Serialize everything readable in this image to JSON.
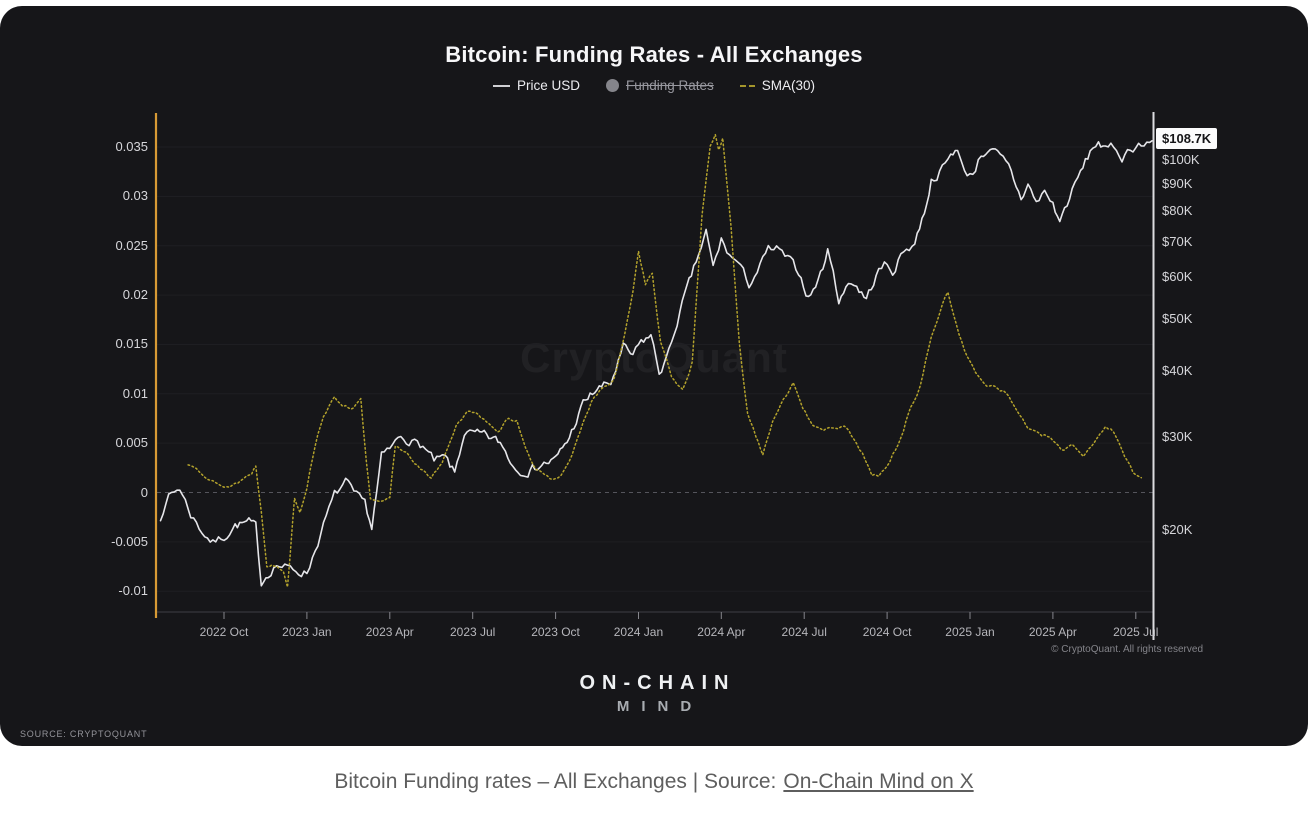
{
  "panel": {
    "title": "Bitcoin: Funding Rates - All Exchanges",
    "watermark": "CryptoQuant",
    "price_tag": "$108.7K",
    "copyright": "© CryptoQuant. All rights reserved",
    "brand_line1": "ON-CHAIN",
    "brand_line2": "MIND",
    "source_label": "SOURCE: CRYPTOQUANT"
  },
  "caption": {
    "prefix": "Bitcoin Funding rates – All Exchanges | Source:",
    "link_text": "On-Chain Mind on X"
  },
  "colors": {
    "panel_bg": "#161619",
    "price_line": "#e6e6ea",
    "sma_line": "#b3a22c",
    "left_axis_line": "#d79a35",
    "right_axis_line": "#dcdce0",
    "zero_line": "#55555c",
    "gridline": "#1f1f23",
    "bottom_border": "#3f3f45",
    "tick_mark": "#86868c",
    "tag_bg": "#fbfbfc"
  },
  "chart_data": {
    "type": "line",
    "title": "Bitcoin: Funding Rates - All Exchanges",
    "background": "#161619",
    "grid": "faint horizontal at left-axis ticks",
    "legend_position": "top-center",
    "legend": [
      {
        "label": "Price USD",
        "marker": "line",
        "color": "#cfcfd3",
        "struck": false
      },
      {
        "label": "Funding Rates",
        "marker": "circle",
        "color": "#85858b",
        "struck": true
      },
      {
        "label": "SMA(30)",
        "marker": "dashes",
        "color": "#a4962c",
        "struck": false
      }
    ],
    "x_axis": {
      "unit": "months since 2022-07-01",
      "range_t": [
        0.7,
        36.6
      ],
      "ticks": [
        {
          "t": 3,
          "label": "2022 Oct"
        },
        {
          "t": 6,
          "label": "2023 Jan"
        },
        {
          "t": 9,
          "label": "2023 Apr"
        },
        {
          "t": 12,
          "label": "2023 Jul"
        },
        {
          "t": 15,
          "label": "2023 Oct"
        },
        {
          "t": 18,
          "label": "2024 Jan"
        },
        {
          "t": 21,
          "label": "2024 Apr"
        },
        {
          "t": 24,
          "label": "2024 Jul"
        },
        {
          "t": 27,
          "label": "2024 Oct"
        },
        {
          "t": 30,
          "label": "2025 Jan"
        },
        {
          "t": 33,
          "label": "2025 Apr"
        },
        {
          "t": 36,
          "label": "2025 Jul"
        }
      ]
    },
    "left_axis": {
      "scale": "linear",
      "zero_line_dashed": true,
      "ticks": [
        {
          "v": 0.035,
          "label": "0.035"
        },
        {
          "v": 0.03,
          "label": "0.03"
        },
        {
          "v": 0.025,
          "label": "0.025"
        },
        {
          "v": 0.02,
          "label": "0.02"
        },
        {
          "v": 0.015,
          "label": "0.015"
        },
        {
          "v": 0.01,
          "label": "0.01"
        },
        {
          "v": 0.005,
          "label": "0.005"
        },
        {
          "v": 0,
          "label": "0"
        },
        {
          "v": -0.005,
          "label": "-0.005"
        },
        {
          "v": -0.01,
          "label": "-0.01"
        }
      ]
    },
    "right_axis": {
      "scale": "log",
      "unit": "USD (thousands)",
      "last_value_label": "$108.7K",
      "last_value": 108.7,
      "ticks": [
        {
          "v": 100,
          "label": "$100K"
        },
        {
          "v": 90,
          "label": "$90K"
        },
        {
          "v": 80,
          "label": "$80K"
        },
        {
          "v": 70,
          "label": "$70K"
        },
        {
          "v": 60,
          "label": "$60K"
        },
        {
          "v": 50,
          "label": "$50K"
        },
        {
          "v": 40,
          "label": "$40K"
        },
        {
          "v": 30,
          "label": "$30K"
        },
        {
          "v": 20,
          "label": "$20K"
        }
      ]
    },
    "series": [
      {
        "name": "Price USD",
        "axis": "right",
        "style": "solid",
        "color": "#e6e6ea",
        "visible": true,
        "points": [
          [
            0.7,
            20.8
          ],
          [
            1.0,
            23.2
          ],
          [
            1.4,
            24.0
          ],
          [
            1.8,
            21.4
          ],
          [
            2.2,
            19.9
          ],
          [
            2.6,
            18.9
          ],
          [
            3.0,
            19.4
          ],
          [
            3.4,
            20.4
          ],
          [
            3.9,
            20.6
          ],
          [
            4.15,
            20.2
          ],
          [
            4.35,
            15.9
          ],
          [
            4.6,
            16.6
          ],
          [
            4.9,
            17.2
          ],
          [
            5.3,
            16.9
          ],
          [
            5.7,
            16.7
          ],
          [
            6.0,
            16.6
          ],
          [
            6.4,
            19.0
          ],
          [
            6.7,
            21.1
          ],
          [
            7.0,
            23.2
          ],
          [
            7.4,
            24.6
          ],
          [
            7.7,
            23.3
          ],
          [
            8.1,
            22.4
          ],
          [
            8.35,
            20.2
          ],
          [
            8.7,
            27.4
          ],
          [
            9.0,
            28.3
          ],
          [
            9.4,
            30.1
          ],
          [
            9.8,
            29.4
          ],
          [
            10.2,
            28.8
          ],
          [
            10.6,
            26.9
          ],
          [
            11.0,
            27.3
          ],
          [
            11.35,
            25.5
          ],
          [
            11.7,
            30.6
          ],
          [
            12.0,
            30.3
          ],
          [
            12.5,
            30.0
          ],
          [
            13.0,
            29.2
          ],
          [
            13.55,
            26.1
          ],
          [
            14.0,
            25.8
          ],
          [
            14.5,
            26.6
          ],
          [
            15.0,
            27.1
          ],
          [
            15.5,
            29.9
          ],
          [
            16.0,
            34.6
          ],
          [
            16.5,
            36.9
          ],
          [
            17.0,
            37.8
          ],
          [
            17.45,
            44.1
          ],
          [
            17.8,
            42.5
          ],
          [
            18.1,
            45.2
          ],
          [
            18.45,
            46.6
          ],
          [
            18.75,
            39.6
          ],
          [
            19.1,
            43.1
          ],
          [
            19.5,
            51.8
          ],
          [
            20.0,
            62.0
          ],
          [
            20.45,
            73.0
          ],
          [
            20.7,
            62.5
          ],
          [
            21.0,
            70.5
          ],
          [
            21.3,
            66.0
          ],
          [
            21.6,
            63.9
          ],
          [
            22.0,
            58.2
          ],
          [
            22.4,
            63.0
          ],
          [
            22.7,
            67.5
          ],
          [
            23.0,
            67.7
          ],
          [
            23.4,
            64.9
          ],
          [
            23.8,
            61.5
          ],
          [
            24.15,
            55.0
          ],
          [
            24.5,
            59.0
          ],
          [
            24.85,
            67.0
          ],
          [
            25.05,
            63.0
          ],
          [
            25.25,
            53.3
          ],
          [
            25.6,
            59.3
          ],
          [
            25.9,
            57.8
          ],
          [
            26.25,
            54.5
          ],
          [
            26.6,
            60.5
          ],
          [
            26.9,
            63.4
          ],
          [
            27.2,
            61.5
          ],
          [
            27.6,
            67.3
          ],
          [
            28.0,
            69.8
          ],
          [
            28.35,
            80.0
          ],
          [
            28.6,
            91.5
          ],
          [
            29.0,
            96.2
          ],
          [
            29.3,
            101.5
          ],
          [
            29.55,
            106.0
          ],
          [
            29.8,
            94.0
          ],
          [
            30.1,
            94.5
          ],
          [
            30.4,
            102.2
          ],
          [
            30.65,
            105.0
          ],
          [
            31.0,
            102.1
          ],
          [
            31.4,
            96.8
          ],
          [
            31.85,
            84.5
          ],
          [
            32.1,
            90.0
          ],
          [
            32.4,
            82.8
          ],
          [
            32.7,
            87.3
          ],
          [
            33.0,
            82.4
          ],
          [
            33.25,
            76.5
          ],
          [
            33.6,
            85.0
          ],
          [
            34.0,
            94.5
          ],
          [
            34.35,
            103.5
          ],
          [
            34.65,
            108.8
          ],
          [
            34.9,
            104.0
          ],
          [
            35.2,
            105.8
          ],
          [
            35.5,
            101.5
          ],
          [
            35.8,
            105.0
          ],
          [
            36.1,
            107.5
          ],
          [
            36.3,
            106.5
          ],
          [
            36.6,
            108.7
          ]
        ]
      },
      {
        "name": "Funding Rates",
        "axis": "left",
        "style": "solid",
        "color": "#85858b",
        "visible": false,
        "points": []
      },
      {
        "name": "SMA(30)",
        "axis": "left",
        "style": "dotted",
        "color": "#b3a22c",
        "visible": true,
        "points": [
          [
            1.7,
            0.0028
          ],
          [
            2.0,
            0.0026
          ],
          [
            2.4,
            0.0015
          ],
          [
            2.8,
            0.0007
          ],
          [
            3.2,
            0.0006
          ],
          [
            3.6,
            0.0012
          ],
          [
            4.0,
            0.002
          ],
          [
            4.15,
            0.0027
          ],
          [
            4.35,
            -0.0018
          ],
          [
            4.55,
            -0.0073
          ],
          [
            4.9,
            -0.0075
          ],
          [
            5.15,
            -0.0079
          ],
          [
            5.3,
            -0.0096
          ],
          [
            5.55,
            -0.0004
          ],
          [
            5.75,
            -0.0019
          ],
          [
            6.0,
            0.0006
          ],
          [
            6.3,
            0.0049
          ],
          [
            6.6,
            0.0079
          ],
          [
            7.0,
            0.0095
          ],
          [
            7.3,
            0.0089
          ],
          [
            7.6,
            0.0086
          ],
          [
            7.95,
            0.0093
          ],
          [
            8.15,
            0.0032
          ],
          [
            8.3,
            -0.0008
          ],
          [
            8.7,
            -0.0011
          ],
          [
            9.0,
            -0.0006
          ],
          [
            9.2,
            0.0047
          ],
          [
            9.6,
            0.0041
          ],
          [
            10.0,
            0.0028
          ],
          [
            10.5,
            0.0013
          ],
          [
            10.9,
            0.0032
          ],
          [
            11.4,
            0.0068
          ],
          [
            11.8,
            0.008
          ],
          [
            12.1,
            0.0083
          ],
          [
            12.4,
            0.0074
          ],
          [
            12.9,
            0.0059
          ],
          [
            13.3,
            0.0076
          ],
          [
            13.6,
            0.0073
          ],
          [
            13.9,
            0.0048
          ],
          [
            14.3,
            0.0022
          ],
          [
            14.7,
            0.0015
          ],
          [
            15.1,
            0.0014
          ],
          [
            15.5,
            0.0031
          ],
          [
            15.9,
            0.0062
          ],
          [
            16.3,
            0.0092
          ],
          [
            16.7,
            0.0106
          ],
          [
            17.1,
            0.0112
          ],
          [
            17.5,
            0.0158
          ],
          [
            17.8,
            0.0205
          ],
          [
            18.0,
            0.0244
          ],
          [
            18.25,
            0.0212
          ],
          [
            18.5,
            0.0221
          ],
          [
            18.8,
            0.0152
          ],
          [
            19.2,
            0.0117
          ],
          [
            19.6,
            0.0104
          ],
          [
            19.95,
            0.0132
          ],
          [
            20.3,
            0.0281
          ],
          [
            20.6,
            0.0352
          ],
          [
            20.78,
            0.0363
          ],
          [
            20.9,
            0.0348
          ],
          [
            21.05,
            0.0358
          ],
          [
            21.35,
            0.0268
          ],
          [
            21.65,
            0.015
          ],
          [
            21.95,
            0.008
          ],
          [
            22.25,
            0.0058
          ],
          [
            22.5,
            0.004
          ],
          [
            22.85,
            0.0072
          ],
          [
            23.25,
            0.0096
          ],
          [
            23.6,
            0.011
          ],
          [
            23.95,
            0.0083
          ],
          [
            24.3,
            0.007
          ],
          [
            24.7,
            0.0065
          ],
          [
            25.1,
            0.0063
          ],
          [
            25.45,
            0.0069
          ],
          [
            25.8,
            0.0052
          ],
          [
            26.1,
            0.004
          ],
          [
            26.45,
            0.0018
          ],
          [
            26.7,
            0.0016
          ],
          [
            27.1,
            0.0031
          ],
          [
            27.5,
            0.0056
          ],
          [
            27.85,
            0.0086
          ],
          [
            28.2,
            0.0108
          ],
          [
            28.6,
            0.0158
          ],
          [
            29.0,
            0.019
          ],
          [
            29.2,
            0.0202
          ],
          [
            29.5,
            0.0172
          ],
          [
            29.8,
            0.0143
          ],
          [
            30.2,
            0.0121
          ],
          [
            30.6,
            0.011
          ],
          [
            31.0,
            0.0107
          ],
          [
            31.3,
            0.0101
          ],
          [
            31.7,
            0.0083
          ],
          [
            32.1,
            0.0066
          ],
          [
            32.5,
            0.0058
          ],
          [
            32.9,
            0.0056
          ],
          [
            33.3,
            0.0042
          ],
          [
            33.7,
            0.0049
          ],
          [
            34.1,
            0.0038
          ],
          [
            34.5,
            0.0051
          ],
          [
            34.9,
            0.0068
          ],
          [
            35.2,
            0.0061
          ],
          [
            35.5,
            0.0042
          ],
          [
            35.9,
            0.0021
          ],
          [
            36.2,
            0.0015
          ]
        ]
      }
    ]
  }
}
